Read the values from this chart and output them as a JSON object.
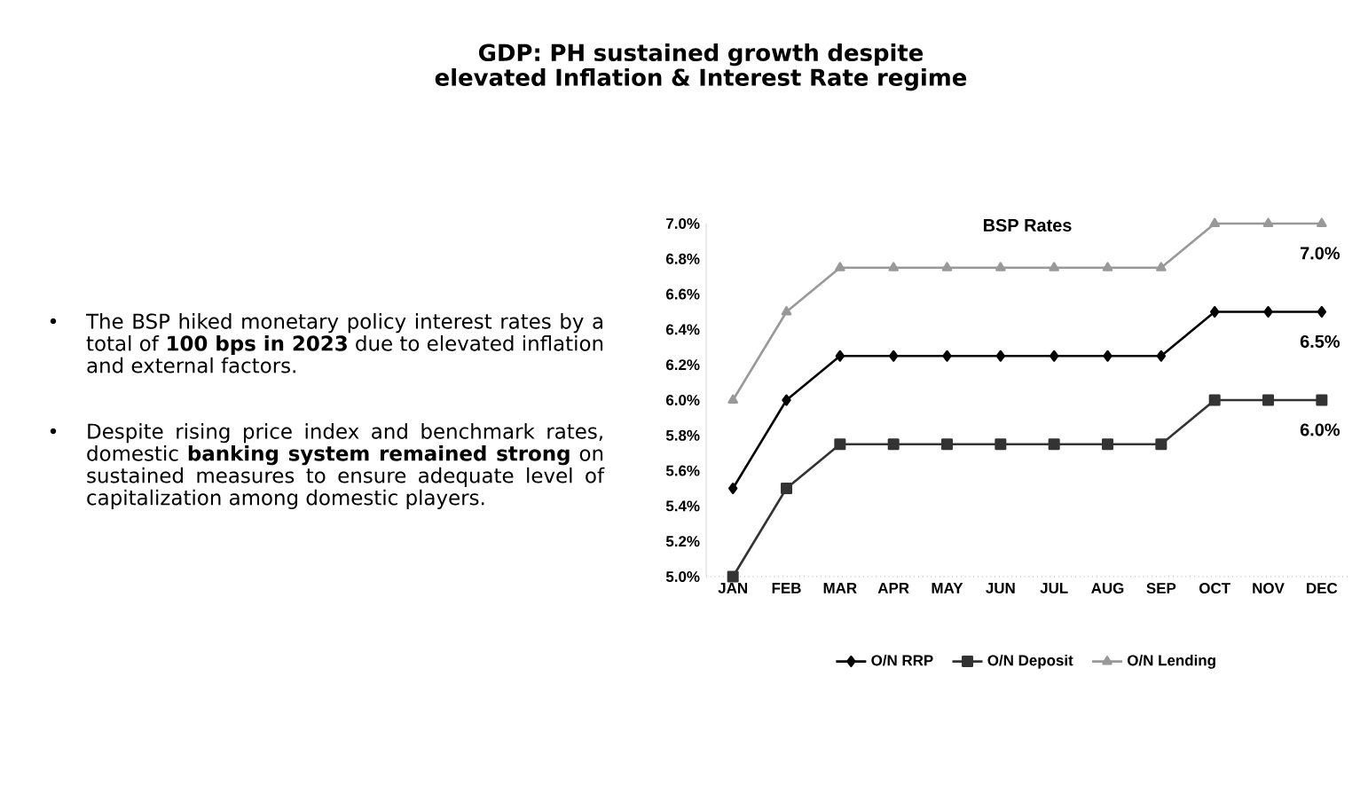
{
  "chart_data": {
    "type": "line",
    "title": "BSP Rates",
    "categories": [
      "JAN",
      "FEB",
      "MAR",
      "APR",
      "MAY",
      "JUN",
      "JUL",
      "AUG",
      "SEP",
      "OCT",
      "NOV",
      "DEC"
    ],
    "series": [
      {
        "name": "O/N RRP",
        "color": "#000000",
        "marker": "diamond",
        "values": [
          5.5,
          6.0,
          6.25,
          6.25,
          6.25,
          6.25,
          6.25,
          6.25,
          6.25,
          6.5,
          6.5,
          6.5
        ],
        "value_labels": [
          null,
          null,
          null,
          null,
          null,
          null,
          null,
          null,
          null,
          null,
          null,
          "6.5%"
        ]
      },
      {
        "name": "O/N Deposit",
        "color": "#333333",
        "marker": "square",
        "values": [
          5.0,
          5.5,
          5.75,
          5.75,
          5.75,
          5.75,
          5.75,
          5.75,
          5.75,
          6.0,
          6.0,
          6.0
        ],
        "value_labels": [
          null,
          null,
          null,
          null,
          null,
          null,
          null,
          null,
          null,
          null,
          null,
          "6.0%"
        ]
      },
      {
        "name": "O/N Lending",
        "color": "#999999",
        "marker": "triangle",
        "values": [
          6.0,
          6.5,
          6.75,
          6.75,
          6.75,
          6.75,
          6.75,
          6.75,
          6.75,
          7.0,
          7.0,
          7.0
        ],
        "value_labels": [
          null,
          null,
          null,
          null,
          null,
          null,
          null,
          null,
          null,
          null,
          null,
          "7.0%"
        ]
      }
    ],
    "ylim": [
      5.0,
      7.0
    ],
    "yticks": [
      {
        "value": 5.0,
        "label": "5.0%"
      },
      {
        "value": 5.2,
        "label": "5.2%"
      },
      {
        "value": 5.4,
        "label": "5.4%"
      },
      {
        "value": 5.6,
        "label": "5.6%"
      },
      {
        "value": 5.8,
        "label": "5.8%"
      },
      {
        "value": 6.0,
        "label": "6.0%"
      },
      {
        "value": 6.2,
        "label": "6.2%"
      },
      {
        "value": 6.4,
        "label": "6.4%"
      },
      {
        "value": 6.6,
        "label": "6.6%"
      },
      {
        "value": 6.8,
        "label": "6.8%"
      },
      {
        "value": 7.0,
        "label": "7.0%"
      }
    ],
    "grid": false,
    "legend": "bottom",
    "line_style": "solid",
    "annotations": [
      "**GDP: PH sustained growth despite elevated Inflation & Interest Rate regime**",
      "The BSP hiked monetary policy interest rates by a total of **100 bps in 2023** due to elevated inflation and external factors.",
      "Despite rising price index and benchmark rates, domestic **banking system remained strong** on sustained measures to ensure adequate level of capitalization among domestic players."
    ]
  }
}
